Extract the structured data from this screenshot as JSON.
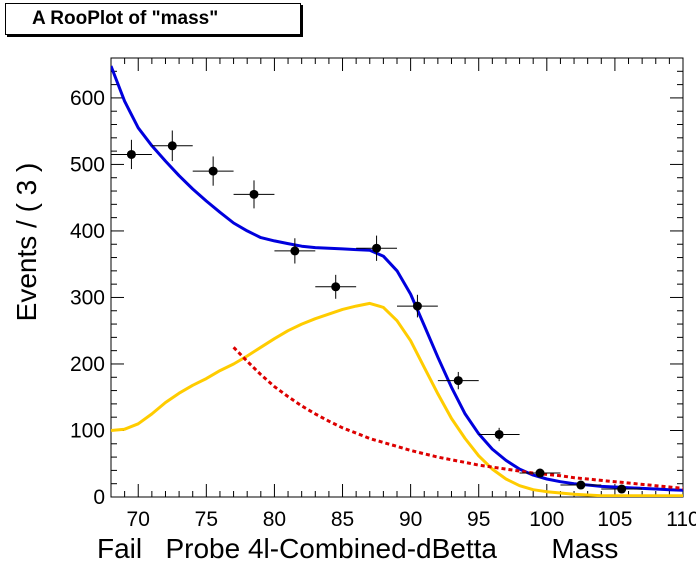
{
  "chart_data": {
    "type": "line",
    "title": "A RooPlot of \"mass\"",
    "xlabel": "Fail   Probe 4l-Combined-dBetta       Mass",
    "ylabel": "Events / ( 3 )",
    "xlim": [
      68,
      110
    ],
    "ylim": [
      0,
      660
    ],
    "x_ticks": [
      70,
      75,
      80,
      85,
      90,
      95,
      100,
      105,
      110
    ],
    "y_ticks": [
      0,
      100,
      200,
      300,
      400,
      500,
      600
    ],
    "grid": false,
    "data_points": {
      "x": [
        69.5,
        72.5,
        75.5,
        78.5,
        81.5,
        84.5,
        87.5,
        90.5,
        93.5,
        96.5,
        99.5,
        102.5,
        105.5
      ],
      "y": [
        515,
        528,
        490,
        455,
        370,
        316,
        374,
        287,
        175,
        94,
        36,
        18,
        12
      ],
      "yerr": [
        22,
        23,
        22,
        21,
        19,
        18,
        19,
        17,
        13,
        10,
        6,
        4,
        3
      ],
      "xerr": 1.5,
      "color": "#000000"
    },
    "series": [
      {
        "color": "#0000dd",
        "style": "solid",
        "x": [
          68,
          69,
          70,
          71,
          72,
          73,
          74,
          75,
          76,
          77,
          78,
          79,
          80,
          81,
          82,
          83,
          84,
          85,
          86,
          87,
          88,
          89,
          90,
          91,
          92,
          93,
          94,
          95,
          96,
          97,
          98,
          99,
          100,
          101,
          102,
          103,
          104,
          105,
          106,
          107,
          108,
          109,
          110
        ],
        "y": [
          648,
          595,
          555,
          528,
          505,
          483,
          463,
          445,
          428,
          412,
          400,
          390,
          385,
          381,
          377,
          375,
          374,
          373,
          372,
          371,
          362,
          340,
          305,
          258,
          210,
          165,
          125,
          95,
          72,
          55,
          42,
          33,
          27,
          23,
          20,
          18,
          16,
          15,
          14,
          13,
          12,
          11,
          10
        ]
      },
      {
        "color": "#ffcc00",
        "style": "solid",
        "x": [
          68,
          69,
          70,
          71,
          72,
          73,
          74,
          75,
          76,
          77,
          78,
          79,
          80,
          81,
          82,
          83,
          84,
          85,
          86,
          87,
          88,
          89,
          90,
          91,
          92,
          93,
          94,
          95,
          96,
          97,
          98,
          99,
          100,
          101,
          102,
          103,
          104,
          105,
          106,
          107,
          108,
          109,
          110
        ],
        "y": [
          100,
          102,
          110,
          125,
          142,
          156,
          168,
          178,
          190,
          200,
          212,
          225,
          238,
          250,
          260,
          268,
          275,
          282,
          287,
          291,
          285,
          265,
          235,
          195,
          155,
          118,
          88,
          62,
          42,
          27,
          17,
          11,
          8,
          6,
          4,
          3,
          2,
          2,
          2,
          2,
          2,
          2,
          2
        ]
      },
      {
        "color": "#dd0000",
        "style": "dashed",
        "x": [
          77,
          78,
          79,
          80,
          81,
          82,
          83,
          84,
          85,
          86,
          87,
          88,
          89,
          90,
          91,
          92,
          93,
          94,
          95,
          96,
          97,
          98,
          99,
          100,
          101,
          102,
          103,
          104,
          105,
          106,
          107,
          108,
          109,
          110
        ],
        "y": [
          225,
          204,
          184,
          166,
          151,
          137,
          125,
          114,
          104,
          96,
          88,
          82,
          76,
          70,
          65,
          60,
          56,
          52,
          48,
          45,
          42,
          39,
          36,
          34,
          32,
          29,
          27,
          25,
          23,
          21,
          19,
          17,
          15,
          13
        ]
      }
    ]
  }
}
